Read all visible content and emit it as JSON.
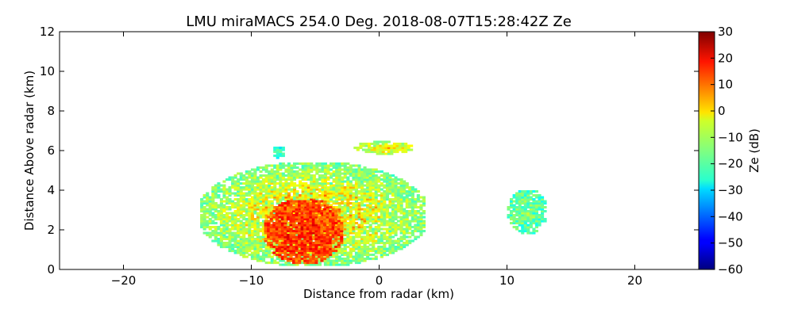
{
  "chart_data": {
    "type": "heatmap",
    "title": "LMU miraMACS 254.0 Deg. 2018-08-07T15:28:42Z  Ze",
    "xlabel": "Distance from radar (km)",
    "ylabel": "Distance Above radar  (km)",
    "xlim": [
      -25,
      25
    ],
    "ylim": [
      0,
      12
    ],
    "x_ticks": [
      -20,
      -10,
      0,
      10,
      20
    ],
    "x_tick_labels": [
      "−20",
      "−10",
      "0",
      "10",
      "20"
    ],
    "y_ticks": [
      0,
      2,
      4,
      6,
      8,
      10,
      12
    ],
    "y_tick_labels": [
      "0",
      "2",
      "4",
      "6",
      "8",
      "10",
      "12"
    ],
    "grid": false,
    "colorbar": {
      "label": "Ze (dB)",
      "range": [
        -60,
        30
      ],
      "colormap": "jet",
      "ticks": [
        30,
        20,
        10,
        0,
        -10,
        -20,
        -30,
        -40,
        -50,
        -60
      ],
      "tick_labels": [
        "30",
        "20",
        "10",
        "0",
        "−10",
        "−20",
        "−30",
        "−40",
        "−50",
        "−60"
      ]
    },
    "echo_regions": [
      {
        "x_range": [
          -14,
          3.5
        ],
        "y_range": [
          0.2,
          5.3
        ],
        "typical_ze": -15,
        "max_ze": 20
      },
      {
        "x_range": [
          -9,
          -3
        ],
        "y_range": [
          0.3,
          3.5
        ],
        "typical_ze": 12,
        "max_ze": 20
      },
      {
        "x_range": [
          -2,
          2.5
        ],
        "y_range": [
          5.8,
          6.4
        ],
        "typical_ze": -10,
        "max_ze": 5
      },
      {
        "x_range": [
          -8.5,
          -7.5
        ],
        "y_range": [
          5.6,
          6.2
        ],
        "typical_ze": -25,
        "max_ze": -15
      },
      {
        "x_range": [
          10,
          13
        ],
        "y_range": [
          1.8,
          4.0
        ],
        "typical_ze": -20,
        "max_ze": -10
      }
    ]
  }
}
